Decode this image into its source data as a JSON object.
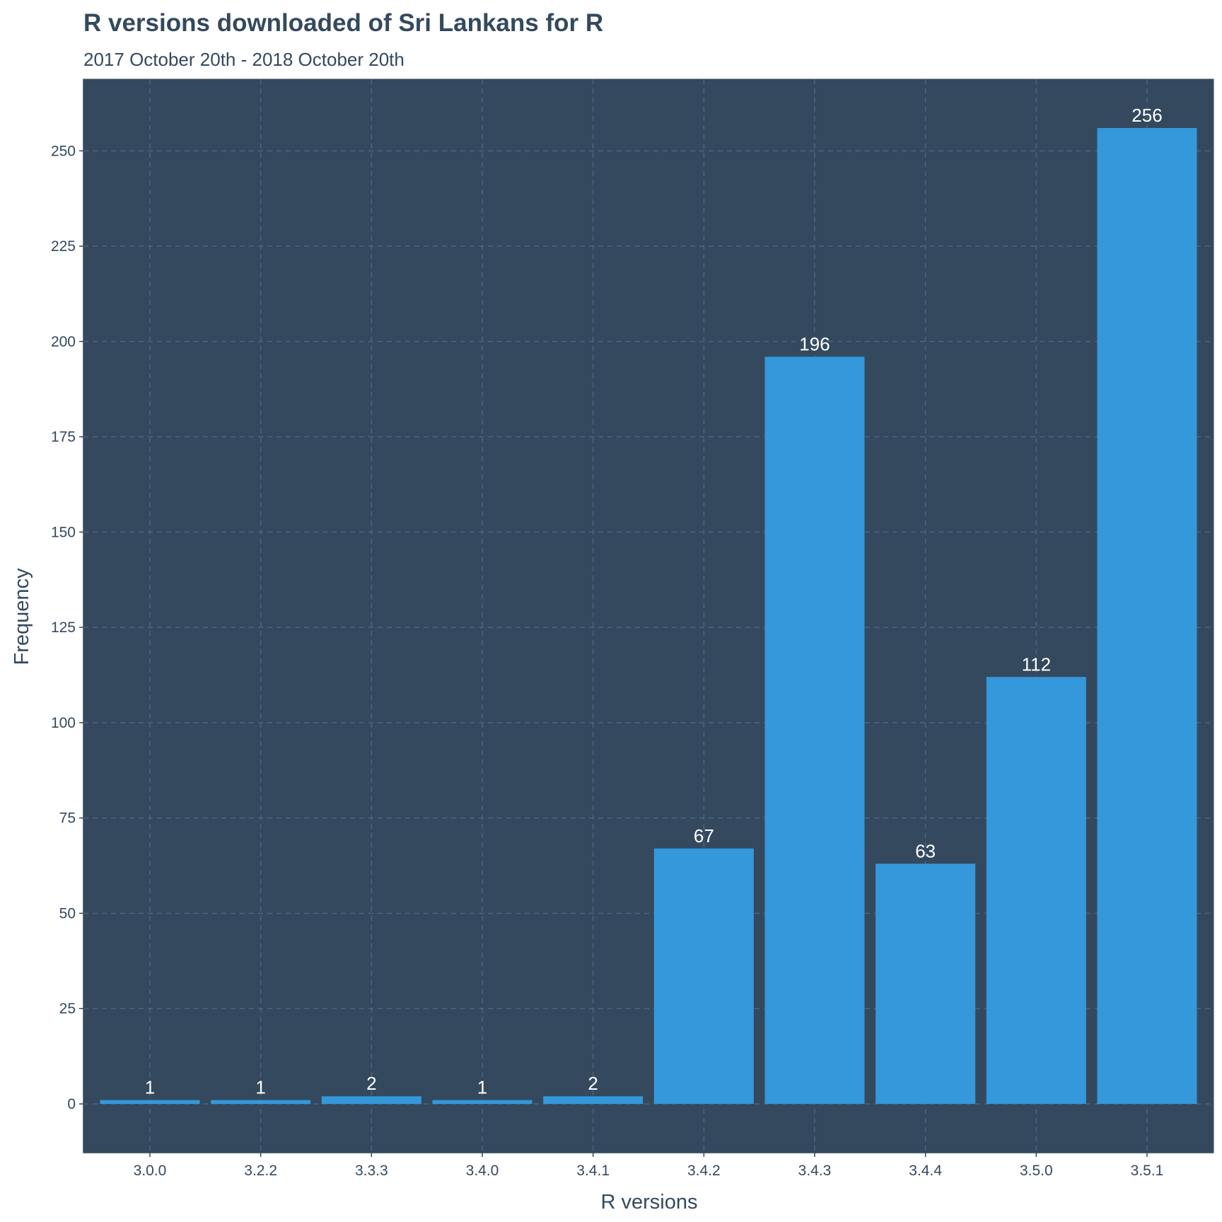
{
  "chart_data": {
    "type": "bar",
    "title": "R versions downloaded of Sri Lankans for R",
    "subtitle": "2017 October 20th - 2018 October 20th",
    "xlabel": "R versions",
    "ylabel": "Frequency",
    "categories": [
      "3.0.0",
      "3.2.2",
      "3.3.3",
      "3.4.0",
      "3.4.1",
      "3.4.2",
      "3.4.3",
      "3.4.4",
      "3.5.0",
      "3.5.1"
    ],
    "values": [
      1,
      1,
      2,
      1,
      2,
      67,
      196,
      63,
      112,
      256
    ],
    "data_labels": [
      "1",
      "1",
      "2",
      "1",
      "2",
      "67",
      "196",
      "63",
      "112",
      "256"
    ],
    "y_ticks": [
      0,
      25,
      50,
      75,
      100,
      125,
      150,
      175,
      200,
      225,
      250
    ],
    "ylim": [
      -12.8,
      268.8
    ],
    "grid": true,
    "legend": "none",
    "colors": {
      "panel_background": "#34495e",
      "bar_fill": "#3498db",
      "grid": "#4d6580",
      "text": "#34495e",
      "bar_label": "#ffffff"
    }
  }
}
